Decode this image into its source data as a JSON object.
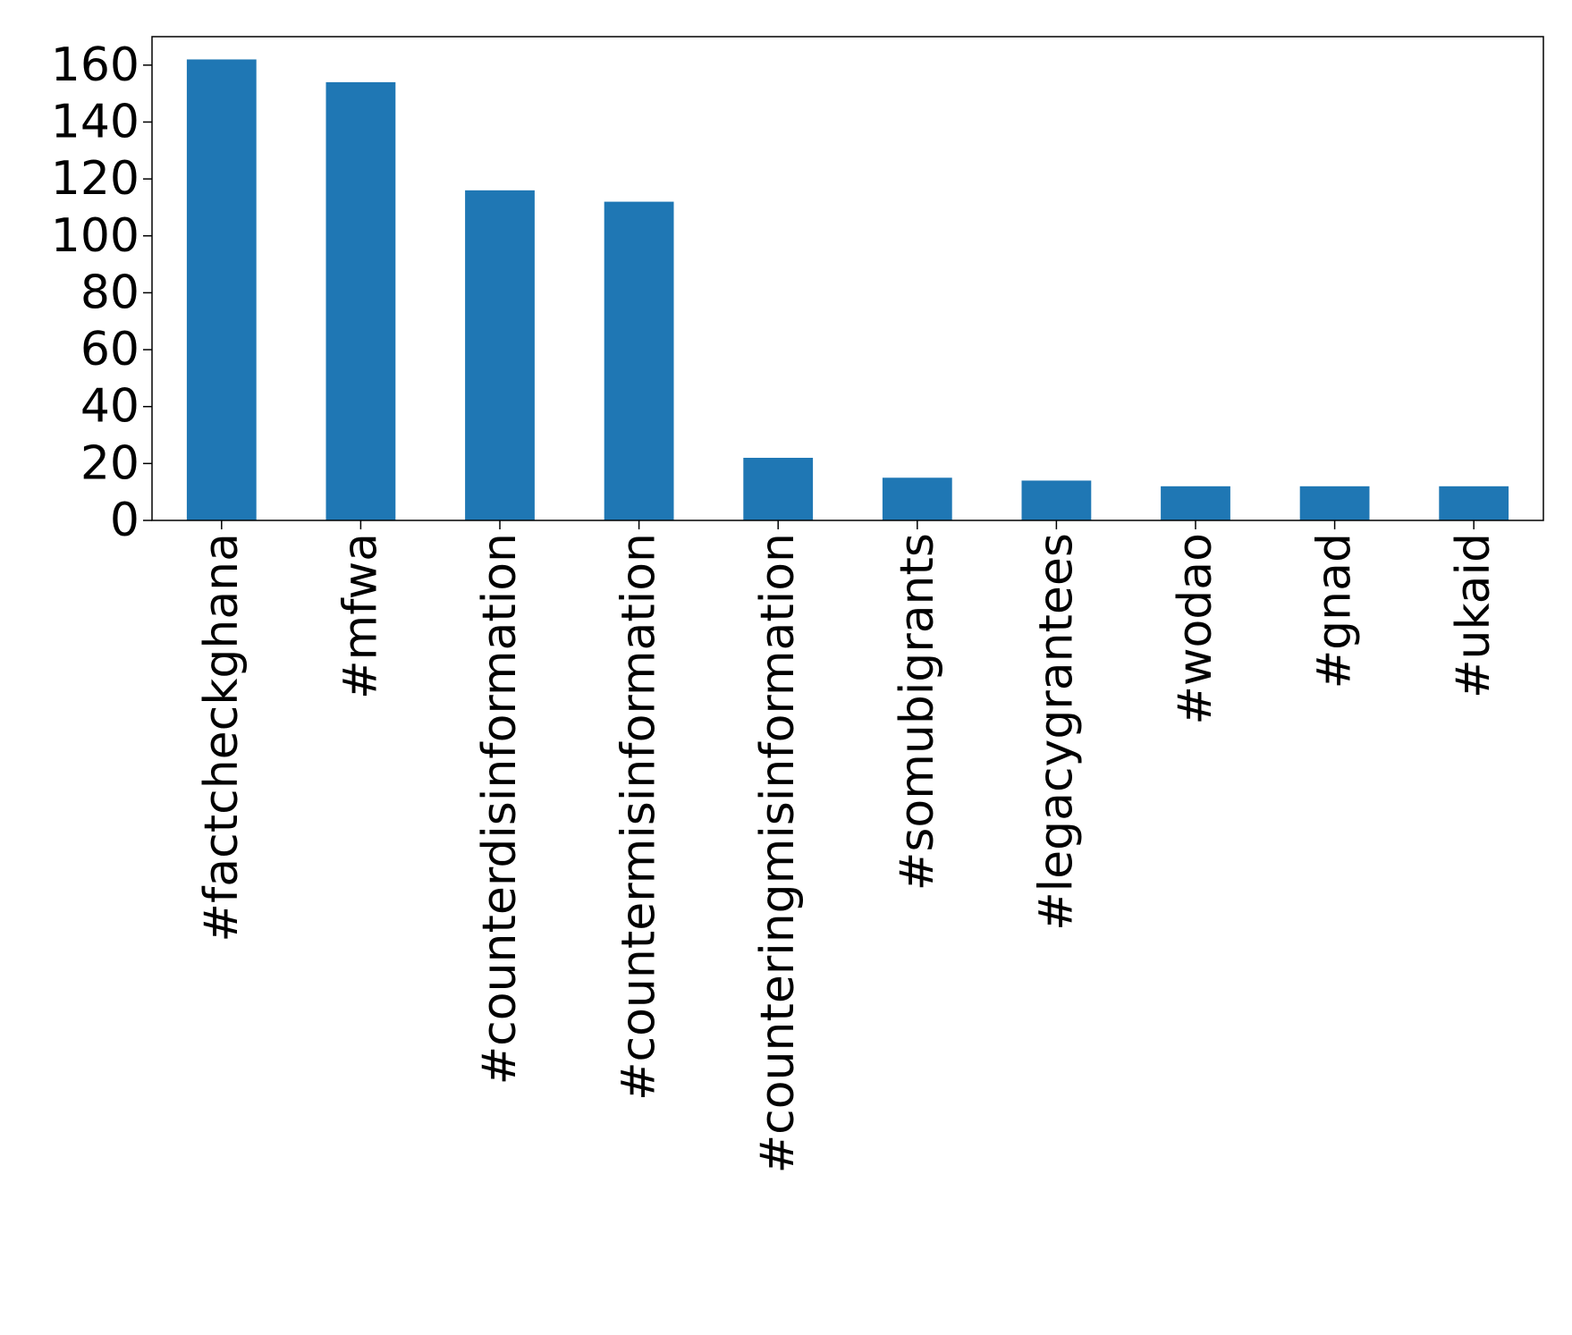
{
  "chart_data": {
    "type": "bar",
    "title": "",
    "xlabel": "",
    "ylabel": "",
    "categories": [
      "#factcheckghana",
      "#mfwa",
      "#counterdisinformation",
      "#countermisinformation",
      "#counteringmisinformation",
      "#somubigrants",
      "#legacygrantees",
      "#wodao",
      "#gnad",
      "#ukaid"
    ],
    "values": [
      162,
      154,
      116,
      112,
      22,
      15,
      14,
      12,
      12,
      12
    ],
    "ylim": [
      0,
      170
    ],
    "yticks": [
      0,
      20,
      40,
      60,
      80,
      100,
      120,
      140,
      160
    ],
    "grid": false,
    "legend": "none",
    "bar_color": "#1f77b4"
  }
}
